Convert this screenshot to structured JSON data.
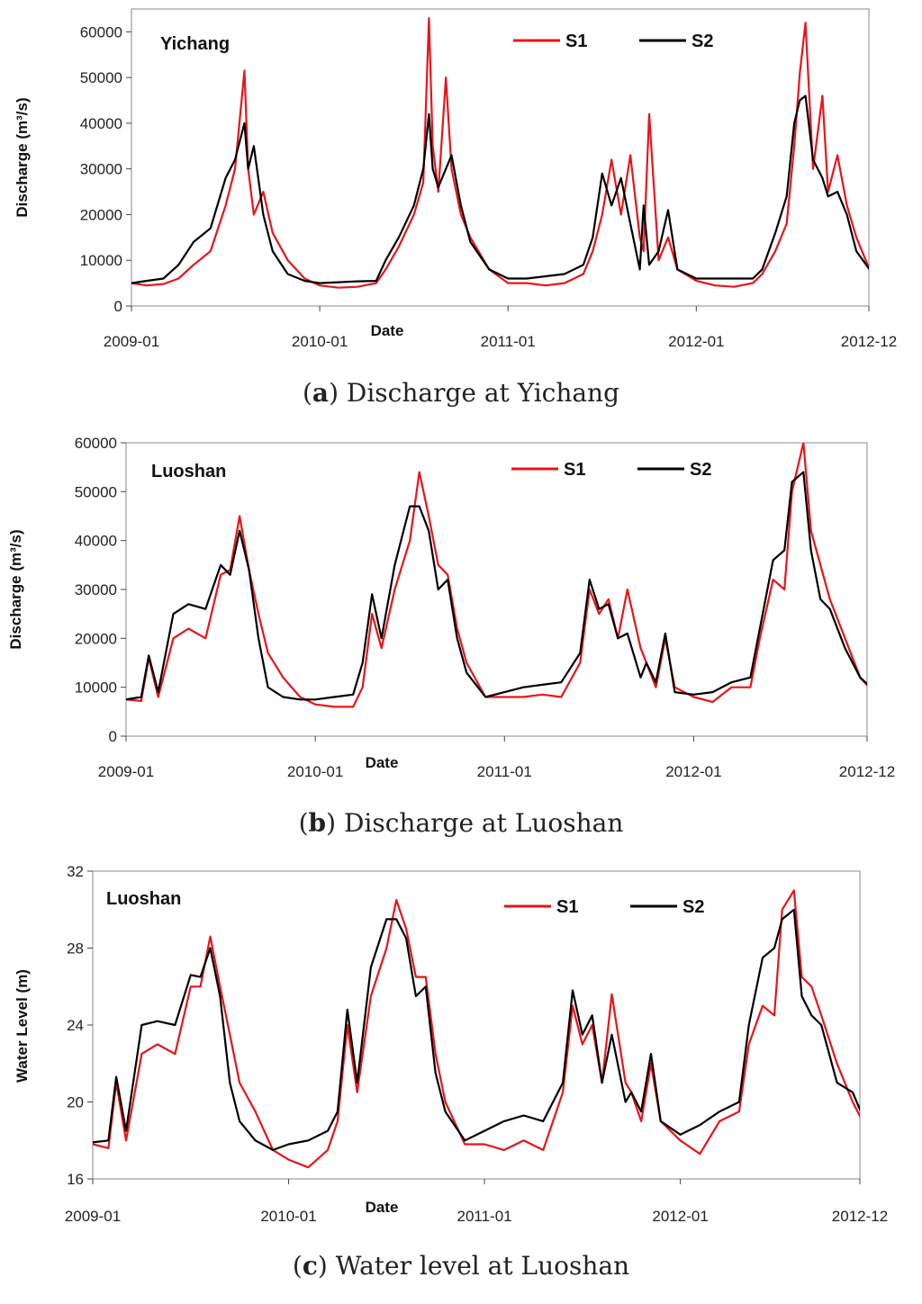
{
  "chart_data": [
    {
      "type": "line",
      "station": "Yichang",
      "caption_letter": "a",
      "caption_text": "Discharge at Yichang",
      "xlabel": "Date",
      "ylabel": "Discharge (m³/s)",
      "ylim": [
        0,
        65000
      ],
      "yticks": [
        0,
        10000,
        20000,
        30000,
        40000,
        50000,
        60000
      ],
      "xticks": [
        "2009-01",
        "2010-01",
        "2011-01",
        "2012-01",
        "2012-12"
      ],
      "xlim": [
        "2009-01",
        "2012-12"
      ],
      "legend_position": "top-right",
      "series": [
        {
          "name": "S1",
          "color": "#e8141b",
          "x": [
            2009.0,
            2009.08,
            2009.17,
            2009.25,
            2009.33,
            2009.42,
            2009.5,
            2009.55,
            2009.6,
            2009.62,
            2009.65,
            2009.7,
            2009.75,
            2009.83,
            2009.92,
            2010.0,
            2010.1,
            2010.2,
            2010.3,
            2010.35,
            2010.42,
            2010.5,
            2010.55,
            2010.58,
            2010.6,
            2010.63,
            2010.67,
            2010.7,
            2010.75,
            2010.8,
            2010.9,
            2011.0,
            2011.1,
            2011.2,
            2011.3,
            2011.4,
            2011.45,
            2011.5,
            2011.55,
            2011.6,
            2011.65,
            2011.7,
            2011.72,
            2011.75,
            2011.8,
            2011.85,
            2011.9,
            2012.0,
            2012.1,
            2012.2,
            2012.3,
            2012.35,
            2012.42,
            2012.48,
            2012.52,
            2012.55,
            2012.58,
            2012.62,
            2012.67,
            2012.7,
            2012.75,
            2012.8,
            2012.85,
            2012.92,
            2013.0
          ],
          "y": [
            5000,
            4500,
            4800,
            6000,
            9000,
            12000,
            22000,
            30000,
            51500,
            30000,
            20000,
            25000,
            16000,
            10000,
            6000,
            4500,
            4000,
            4200,
            5000,
            8000,
            13000,
            20000,
            27000,
            63000,
            35000,
            25000,
            50000,
            30000,
            20000,
            15000,
            8000,
            5000,
            5000,
            4500,
            5000,
            7000,
            12000,
            20000,
            32000,
            20000,
            33000,
            15000,
            12000,
            42000,
            10000,
            15000,
            8000,
            5500,
            4500,
            4200,
            5000,
            7000,
            12000,
            18000,
            35000,
            51000,
            62000,
            30000,
            46000,
            25000,
            33000,
            22000,
            15000,
            8000,
            5500
          ]
        },
        {
          "name": "S2",
          "color": "#000000",
          "x": [
            2009.0,
            2009.08,
            2009.17,
            2009.25,
            2009.33,
            2009.42,
            2009.5,
            2009.55,
            2009.6,
            2009.62,
            2009.65,
            2009.7,
            2009.75,
            2009.83,
            2009.92,
            2010.0,
            2010.1,
            2010.2,
            2010.3,
            2010.35,
            2010.42,
            2010.5,
            2010.55,
            2010.58,
            2010.6,
            2010.63,
            2010.67,
            2010.7,
            2010.75,
            2010.8,
            2010.9,
            2011.0,
            2011.1,
            2011.2,
            2011.3,
            2011.4,
            2011.45,
            2011.5,
            2011.55,
            2011.6,
            2011.65,
            2011.7,
            2011.72,
            2011.75,
            2011.8,
            2011.85,
            2011.9,
            2012.0,
            2012.1,
            2012.2,
            2012.3,
            2012.35,
            2012.42,
            2012.48,
            2012.52,
            2012.55,
            2012.58,
            2012.62,
            2012.67,
            2012.7,
            2012.75,
            2012.8,
            2012.85,
            2012.92,
            2013.0
          ],
          "y": [
            5000,
            5500,
            6000,
            9000,
            14000,
            17000,
            28000,
            32000,
            40000,
            30000,
            35000,
            20000,
            12000,
            7000,
            5500,
            5000,
            5200,
            5400,
            5500,
            10000,
            15000,
            22000,
            30000,
            42000,
            30000,
            26000,
            30000,
            33000,
            22000,
            14000,
            8000,
            6000,
            6000,
            6500,
            7000,
            9000,
            15000,
            29000,
            22000,
            28000,
            18000,
            8000,
            22000,
            9000,
            12000,
            21000,
            8000,
            6000,
            6000,
            6000,
            6000,
            8000,
            16000,
            24000,
            40000,
            45000,
            46000,
            32000,
            28000,
            24000,
            25000,
            20000,
            12000,
            8000,
            6000
          ]
        }
      ]
    },
    {
      "type": "line",
      "station": "Luoshan",
      "caption_letter": "b",
      "caption_text": "Discharge at Luoshan",
      "xlabel": "Date",
      "ylabel": "Discharge (m³/s)",
      "ylim": [
        0,
        60000
      ],
      "yticks": [
        0,
        10000,
        20000,
        30000,
        40000,
        50000,
        60000
      ],
      "xticks": [
        "2009-01",
        "2010-01",
        "2011-01",
        "2012-01",
        "2012-12"
      ],
      "xlim": [
        "2009-01",
        "2012-12"
      ],
      "legend_position": "top-right",
      "series": [
        {
          "name": "S1",
          "color": "#e8141b",
          "x": [
            2009.0,
            2009.08,
            2009.12,
            2009.17,
            2009.25,
            2009.33,
            2009.42,
            2009.5,
            2009.55,
            2009.6,
            2009.65,
            2009.7,
            2009.75,
            2009.83,
            2009.92,
            2010.0,
            2010.1,
            2010.2,
            2010.25,
            2010.3,
            2010.35,
            2010.42,
            2010.5,
            2010.55,
            2010.6,
            2010.65,
            2010.7,
            2010.75,
            2010.8,
            2010.9,
            2011.0,
            2011.1,
            2011.2,
            2011.3,
            2011.4,
            2011.45,
            2011.5,
            2011.55,
            2011.6,
            2011.65,
            2011.72,
            2011.75,
            2011.8,
            2011.85,
            2011.9,
            2012.0,
            2012.1,
            2012.2,
            2012.3,
            2012.35,
            2012.42,
            2012.48,
            2012.52,
            2012.58,
            2012.62,
            2012.67,
            2012.72,
            2012.8,
            2012.88,
            2012.95,
            2013.0
          ],
          "y": [
            7500,
            7200,
            16000,
            8000,
            20000,
            22000,
            20000,
            33000,
            34000,
            45000,
            34000,
            25000,
            17000,
            12000,
            8000,
            6500,
            6000,
            6000,
            10000,
            25000,
            18000,
            30000,
            40000,
            54000,
            45000,
            35000,
            33000,
            22000,
            15000,
            8000,
            8000,
            8000,
            8500,
            8000,
            15000,
            30000,
            25000,
            28000,
            20000,
            30000,
            18000,
            15000,
            10000,
            20000,
            10000,
            8000,
            7000,
            10000,
            10000,
            20000,
            32000,
            30000,
            50000,
            60000,
            42000,
            35000,
            28000,
            20000,
            12000,
            9000,
            11000
          ]
        },
        {
          "name": "S2",
          "color": "#000000",
          "x": [
            2009.0,
            2009.08,
            2009.12,
            2009.17,
            2009.25,
            2009.33,
            2009.42,
            2009.5,
            2009.55,
            2009.6,
            2009.65,
            2009.7,
            2009.75,
            2009.83,
            2009.92,
            2010.0,
            2010.1,
            2010.2,
            2010.25,
            2010.3,
            2010.35,
            2010.42,
            2010.5,
            2010.55,
            2010.6,
            2010.65,
            2010.7,
            2010.75,
            2010.8,
            2010.9,
            2011.0,
            2011.1,
            2011.2,
            2011.3,
            2011.4,
            2011.45,
            2011.5,
            2011.55,
            2011.6,
            2011.65,
            2011.72,
            2011.75,
            2011.8,
            2011.85,
            2011.9,
            2012.0,
            2012.1,
            2012.2,
            2012.3,
            2012.35,
            2012.42,
            2012.48,
            2012.52,
            2012.58,
            2012.62,
            2012.67,
            2012.72,
            2012.8,
            2012.88,
            2012.95,
            2013.0
          ],
          "y": [
            7500,
            8000,
            16500,
            9000,
            25000,
            27000,
            26000,
            35000,
            33000,
            42000,
            34000,
            20000,
            10000,
            8000,
            7500,
            7500,
            8000,
            8500,
            15000,
            29000,
            20000,
            35000,
            47000,
            47000,
            42000,
            30000,
            32000,
            20000,
            13000,
            8000,
            9000,
            10000,
            10500,
            11000,
            17000,
            32000,
            26000,
            27000,
            20000,
            21000,
            12000,
            15000,
            11000,
            21000,
            9000,
            8500,
            9000,
            11000,
            12000,
            22000,
            36000,
            38000,
            52000,
            54000,
            38000,
            28000,
            26000,
            18000,
            12000,
            9500,
            12000
          ]
        }
      ]
    },
    {
      "type": "line",
      "station": "Luoshan",
      "caption_letter": "c",
      "caption_text": "Water level at Luoshan",
      "xlabel": "Date",
      "ylabel": "Water Level (m)",
      "ylim": [
        16,
        32
      ],
      "yticks": [
        16,
        20,
        24,
        28,
        32
      ],
      "xticks": [
        "2009-01",
        "2010-01",
        "2011-01",
        "2012-01",
        "2012-12"
      ],
      "xlim": [
        "2009-01",
        "2012-12"
      ],
      "legend_position": "top-right",
      "series": [
        {
          "name": "S1",
          "color": "#e8141b",
          "x": [
            2009.0,
            2009.08,
            2009.12,
            2009.17,
            2009.25,
            2009.33,
            2009.42,
            2009.5,
            2009.55,
            2009.6,
            2009.65,
            2009.7,
            2009.75,
            2009.83,
            2009.92,
            2010.0,
            2010.1,
            2010.2,
            2010.25,
            2010.3,
            2010.35,
            2010.42,
            2010.5,
            2010.55,
            2010.6,
            2010.65,
            2010.7,
            2010.75,
            2010.8,
            2010.9,
            2011.0,
            2011.1,
            2011.2,
            2011.3,
            2011.4,
            2011.45,
            2011.5,
            2011.55,
            2011.6,
            2011.65,
            2011.72,
            2011.75,
            2011.8,
            2011.85,
            2011.9,
            2012.0,
            2012.1,
            2012.2,
            2012.3,
            2012.35,
            2012.42,
            2012.48,
            2012.52,
            2012.58,
            2012.62,
            2012.67,
            2012.72,
            2012.8,
            2012.88,
            2012.95,
            2013.0
          ],
          "y": [
            17.8,
            17.6,
            21.0,
            18.0,
            22.5,
            23.0,
            22.5,
            26.0,
            26.0,
            28.6,
            26.0,
            23.5,
            21.0,
            19.5,
            17.5,
            17.0,
            16.6,
            17.5,
            19.0,
            24.0,
            20.5,
            25.5,
            28.0,
            30.5,
            29.0,
            26.5,
            26.5,
            22.5,
            20.0,
            17.8,
            17.8,
            17.5,
            18.0,
            17.5,
            20.5,
            25.0,
            23.0,
            24.0,
            21.0,
            25.6,
            21.0,
            20.5,
            19.0,
            22.0,
            19.0,
            18.0,
            17.3,
            19.0,
            19.5,
            23.0,
            25.0,
            24.5,
            30.0,
            31.0,
            26.5,
            26.0,
            24.5,
            22.0,
            20.0,
            18.6,
            19.8
          ]
        },
        {
          "name": "S2",
          "color": "#000000",
          "x": [
            2009.0,
            2009.08,
            2009.12,
            2009.17,
            2009.25,
            2009.33,
            2009.42,
            2009.5,
            2009.55,
            2009.6,
            2009.65,
            2009.7,
            2009.75,
            2009.83,
            2009.92,
            2010.0,
            2010.1,
            2010.2,
            2010.25,
            2010.3,
            2010.35,
            2010.42,
            2010.5,
            2010.55,
            2010.6,
            2010.65,
            2010.7,
            2010.75,
            2010.8,
            2010.9,
            2011.0,
            2011.1,
            2011.2,
            2011.3,
            2011.4,
            2011.45,
            2011.5,
            2011.55,
            2011.6,
            2011.65,
            2011.72,
            2011.75,
            2011.8,
            2011.85,
            2011.9,
            2012.0,
            2012.1,
            2012.2,
            2012.3,
            2012.35,
            2012.42,
            2012.48,
            2012.52,
            2012.58,
            2012.62,
            2012.67,
            2012.72,
            2012.8,
            2012.88,
            2012.95,
            2013.0
          ],
          "y": [
            17.9,
            18.0,
            21.3,
            18.5,
            24.0,
            24.2,
            24.0,
            26.6,
            26.5,
            28.0,
            25.5,
            21.0,
            19.0,
            18.0,
            17.5,
            17.8,
            18.0,
            18.5,
            19.5,
            24.8,
            21.0,
            27.0,
            29.5,
            29.5,
            28.5,
            25.5,
            26.0,
            21.5,
            19.5,
            18.0,
            18.5,
            19.0,
            19.3,
            19.0,
            21.0,
            25.8,
            23.5,
            24.5,
            21.0,
            23.5,
            20.0,
            20.5,
            19.5,
            22.5,
            19.0,
            18.3,
            18.8,
            19.5,
            20.0,
            24.0,
            27.5,
            28.0,
            29.5,
            30.0,
            25.5,
            24.5,
            24.0,
            21.0,
            20.5,
            18.8,
            19.8
          ]
        }
      ]
    }
  ]
}
